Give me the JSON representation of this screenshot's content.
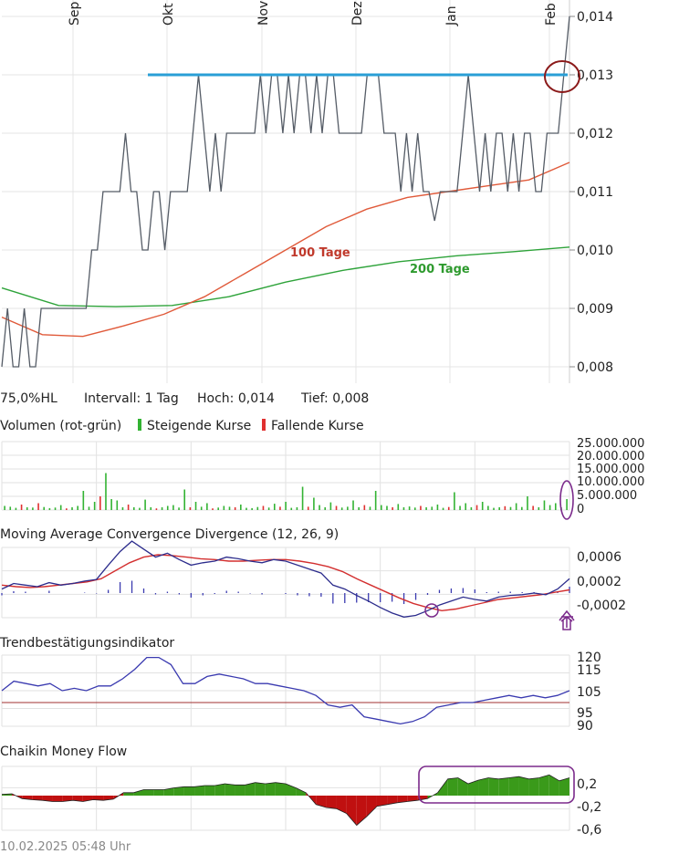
{
  "chart_data": [
    {
      "type": "line",
      "name": "price-chart",
      "months": [
        "Sep",
        "Okt",
        "Nov",
        "Dez",
        "Jan",
        "Feb"
      ],
      "yticks": [
        "0,014",
        "0,013",
        "0,012",
        "0,011",
        "0,010",
        "0,009",
        "0,008"
      ],
      "ylim": [
        0.008,
        0.014
      ],
      "price": [
        0.008,
        0.009,
        0.008,
        0.008,
        0.009,
        0.008,
        0.008,
        0.009,
        0.009,
        0.009,
        0.009,
        0.009,
        0.009,
        0.009,
        0.009,
        0.009,
        0.01,
        0.01,
        0.011,
        0.011,
        0.011,
        0.011,
        0.012,
        0.011,
        0.011,
        0.01,
        0.01,
        0.011,
        0.011,
        0.01,
        0.011,
        0.011,
        0.011,
        0.011,
        0.012,
        0.013,
        0.012,
        0.011,
        0.012,
        0.011,
        0.012,
        0.012,
        0.012,
        0.012,
        0.012,
        0.012,
        0.013,
        0.012,
        0.013,
        0.013,
        0.012,
        0.013,
        0.012,
        0.013,
        0.013,
        0.012,
        0.013,
        0.012,
        0.013,
        0.013,
        0.012,
        0.012,
        0.012,
        0.012,
        0.012,
        0.013,
        0.013,
        0.013,
        0.012,
        0.012,
        0.012,
        0.011,
        0.012,
        0.011,
        0.012,
        0.011,
        0.011,
        0.0105,
        0.011,
        0.011,
        0.011,
        0.011,
        0.012,
        0.013,
        0.012,
        0.011,
        0.012,
        0.011,
        0.012,
        0.012,
        0.011,
        0.012,
        0.011,
        0.012,
        0.012,
        0.011,
        0.011,
        0.012,
        0.012,
        0.012,
        0.013,
        0.014
      ],
      "ma100": [
        0.00885,
        0.00855,
        0.00852,
        0.0087,
        0.0089,
        0.0092,
        0.0096,
        0.01,
        0.0104,
        0.0107,
        0.0109,
        0.011,
        0.0111,
        0.0112,
        0.0115
      ],
      "ma200": [
        0.00935,
        0.00905,
        0.00903,
        0.00905,
        0.0092,
        0.00945,
        0.00965,
        0.0098,
        0.0099,
        0.00997,
        0.01005
      ],
      "resistance": 0.013,
      "ma100_label": "100 Tage",
      "ma200_label": "200 Tage",
      "colors": {
        "price": "#555c66",
        "ma100": "#e05a3a",
        "ma200": "#2ea33a",
        "resistance": "#2a9fd6",
        "circle": "#8b1a1a",
        "ma100_text": "#c0392b",
        "ma200_text": "#2e9a2e"
      }
    },
    {
      "type": "bar",
      "name": "volume-chart",
      "title": "Volumen (rot-grün)",
      "legend_up": "Steigende Kurse",
      "legend_down": "Fallende Kurse",
      "yticks": [
        "25.000.000",
        "20.000.000",
        "15.000.000",
        "10.000.000",
        "5.000.000",
        "0"
      ],
      "ylim": [
        0,
        25000000
      ],
      "values": [
        1500000,
        1200000,
        800000,
        2000000,
        1000000,
        900000,
        2500000,
        1100000,
        700000,
        900000,
        1800000,
        600000,
        1000000,
        1500000,
        7000000,
        1200000,
        3000000,
        5000000,
        13500000,
        4000000,
        3500000,
        1000000,
        2000000,
        1000000,
        800000,
        3800000,
        1000000,
        600000,
        1000000,
        1500000,
        1800000,
        900000,
        7500000,
        1000000,
        3000000,
        1200000,
        2500000,
        600000,
        900000,
        1500000,
        1200000,
        1000000,
        2000000,
        800000,
        700000,
        1100000,
        1500000,
        900000,
        2300000,
        1200000,
        3000000,
        800000,
        1000000,
        8500000,
        1200000,
        4500000,
        1800000,
        1000000,
        2800000,
        1500000,
        900000,
        1200000,
        3500000,
        1000000,
        1800000,
        1200000,
        7000000,
        1800000,
        1500000,
        1000000,
        2200000,
        1000000,
        1300000,
        900000,
        1500000,
        1000000,
        1200000,
        2000000,
        800000,
        1100000,
        6500000,
        1500000,
        2500000,
        1000000,
        1800000,
        3000000,
        1500000,
        800000,
        1000000,
        1400000,
        1100000,
        2500000,
        1100000,
        5000000,
        1500000,
        1000000,
        3500000,
        1800000,
        2500000,
        1000000,
        4000000
      ],
      "up": [
        true,
        true,
        true,
        false,
        true,
        true,
        false,
        true,
        true,
        true,
        true,
        false,
        true,
        true,
        true,
        true,
        true,
        false,
        true,
        true,
        true,
        true,
        false,
        true,
        true,
        true,
        true,
        false,
        true,
        true,
        true,
        true,
        true,
        false,
        true,
        true,
        true,
        false,
        true,
        true,
        true,
        false,
        true,
        true,
        true,
        true,
        false,
        true,
        true,
        false,
        true,
        true,
        true,
        true,
        false,
        true,
        true,
        true,
        true,
        false,
        true,
        true,
        true,
        true,
        false,
        true,
        true,
        true,
        true,
        false,
        true,
        true,
        true,
        true,
        false,
        true,
        true,
        true,
        true,
        false,
        true,
        true,
        true,
        true,
        false,
        true,
        true,
        true,
        true,
        false,
        true,
        true,
        true,
        true,
        false,
        true,
        true,
        true,
        true,
        true,
        true
      ],
      "colors": {
        "up": "#33b333",
        "down": "#e03030",
        "circle": "#7b2a8b"
      }
    },
    {
      "type": "line",
      "name": "macd-chart",
      "title": "Moving Average Convergence Divergence (12, 26, 9)",
      "yticks": [
        "0,0006",
        "0,0002",
        "-0,0002"
      ],
      "macd": [
        5e-05,
        0.00012,
        0.0001,
        8e-05,
        0.00013,
        0.0001,
        0.00012,
        0.00015,
        0.00017,
        0.00035,
        0.00052,
        0.00065,
        0.00055,
        0.00045,
        0.0005,
        0.00042,
        0.00035,
        0.00038,
        0.0004,
        0.00045,
        0.00043,
        0.0004,
        0.00038,
        0.00042,
        0.0004,
        0.00035,
        0.0003,
        0.00025,
        0.0001,
        5e-05,
        -3e-05,
        -0.0001,
        -0.00018,
        -0.00025,
        -0.0003,
        -0.00028,
        -0.00022,
        -0.00015,
        -0.0001,
        -5e-05,
        -8e-05,
        -0.0001,
        -5e-05,
        -3e-05,
        -2e-05,
        0,
        -2e-05,
        5e-05,
        0.00018
      ],
      "signal": [
        0.0001,
        8e-05,
        7e-05,
        8e-05,
        0.0001,
        0.00012,
        0.00014,
        0.00018,
        0.00028,
        0.00038,
        0.00045,
        0.00048,
        0.00047,
        0.00045,
        0.00043,
        0.00042,
        0.0004,
        0.0004,
        0.00041,
        0.00042,
        0.00042,
        0.0004,
        0.00037,
        0.00033,
        0.00027,
        0.00018,
        0.0001,
        2e-05,
        -6e-05,
        -0.00013,
        -0.00018,
        -0.00022,
        -0.0002,
        -0.00016,
        -0.00012,
        -8e-05,
        -6e-05,
        -4e-05,
        -2e-05,
        1e-05,
        4e-05
      ],
      "colors": {
        "macd": "#2c2c8c",
        "signal": "#d32f2f",
        "hist": "#3a3ab0",
        "circle": "#7b2a8b",
        "arrow": "#7b2a8b"
      }
    },
    {
      "type": "line",
      "name": "trend-chart",
      "title": "Trendbestätigungsindikator",
      "yticks": [
        "120",
        "115",
        "105",
        "95",
        "90"
      ],
      "ylim": [
        90,
        120
      ],
      "baseline": 100,
      "values": [
        105,
        109,
        108,
        107,
        108,
        105,
        106,
        105,
        107,
        107,
        110,
        114,
        119,
        119,
        116,
        108,
        108,
        111,
        112,
        111,
        110,
        108,
        108,
        107,
        106,
        105,
        103,
        99,
        98,
        99,
        94,
        93,
        92,
        91,
        92,
        94,
        98,
        99,
        100,
        100,
        101,
        102,
        103,
        102,
        103,
        102,
        103,
        105
      ],
      "colors": {
        "line": "#3a3ab0",
        "baseline": "#a03030"
      }
    },
    {
      "type": "area",
      "name": "cmf-chart",
      "title": "Chaikin Money Flow",
      "yticks": [
        "0,2",
        "-0,2",
        "-0,6"
      ],
      "ylim": [
        -0.6,
        0.4
      ],
      "values": [
        0.02,
        0.03,
        -0.05,
        -0.07,
        -0.08,
        -0.1,
        -0.1,
        -0.08,
        -0.1,
        -0.07,
        -0.08,
        -0.06,
        0.05,
        0.05,
        0.1,
        0.1,
        0.1,
        0.13,
        0.15,
        0.15,
        0.17,
        0.17,
        0.2,
        0.18,
        0.18,
        0.22,
        0.2,
        0.22,
        0.2,
        0.13,
        0.05,
        -0.15,
        -0.2,
        -0.22,
        -0.3,
        -0.5,
        -0.35,
        -0.18,
        -0.15,
        -0.12,
        -0.1,
        -0.08,
        -0.05,
        0.05,
        0.28,
        0.3,
        0.2,
        0.26,
        0.3,
        0.28,
        0.3,
        0.32,
        0.28,
        0.3,
        0.35,
        0.25,
        0.3
      ],
      "colors": {
        "up": "#3a9a1a",
        "down": "#c01010",
        "circle": "#7b2a8b"
      }
    }
  ],
  "info_bar": {
    "hl": "75,0%HL",
    "interval": "Intervall: 1 Tag",
    "high": "Hoch:  0,014",
    "low": "Tief:  0,008"
  },
  "footer": {
    "timestamp": "10.02.2025 05:48 Uhr"
  }
}
